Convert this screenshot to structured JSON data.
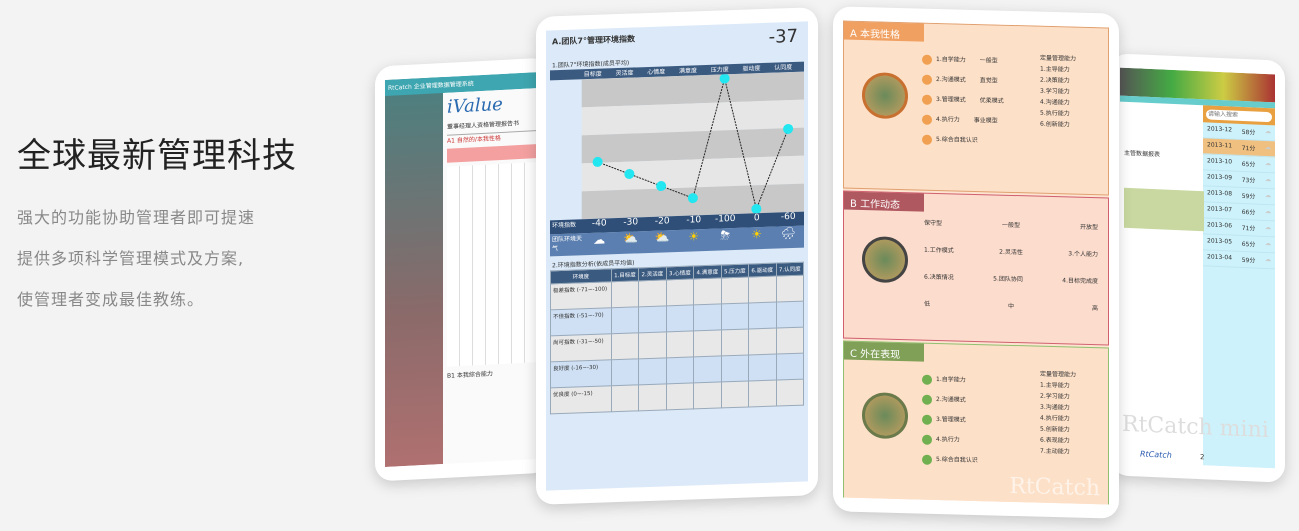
{
  "hero": {
    "title": "全球最新管理科技",
    "lines": [
      "强大的功能协助管理者即可提速",
      "提供多项科学管理模式及方案,",
      "使管理者变成最佳教练。"
    ]
  },
  "tablet_left": {
    "brand": "RtCatch",
    "header": "RtCatch 企业管理数据管理系统",
    "logo": "iValue",
    "subtitle": "董事经理人资格管理报告书",
    "section_a1": "A1 自然的/本我性格",
    "section_b1": "B1 本我综合能力"
  },
  "tablet_mid": {
    "title": "A.团队7°管理环境指数",
    "score": "-37",
    "chart_caption": "1.团队7°环境指数(成员平均)",
    "row_index_label": "环境指数",
    "row_weather_label": "团队环境天气",
    "weather_icons": [
      "cloudy-icon",
      "partly-sunny-icon",
      "partly-sunny-icon",
      "sunny-icon",
      "thunderstorm-icon",
      "sunny-icon",
      "rain-icon"
    ],
    "table_caption": "2.环境指数分析(依成员平均值)",
    "table_headers": [
      "环境度",
      "1.目标度",
      "2.灵活度",
      "3.心情度",
      "4.满意度",
      "5.压力度",
      "6.驱动度",
      "7.认同度"
    ],
    "table_rows": [
      {
        "label": "极差指数 (-71~-100)"
      },
      {
        "label": "不佳指数 (-51~-70)"
      },
      {
        "label": "尚可指数 (-31~-50)"
      },
      {
        "label": "良好度 (-16~-30)"
      },
      {
        "label": "优良度 (0~-15)"
      }
    ]
  },
  "chart_data": {
    "type": "line",
    "categories": [
      "目标度",
      "灵活度",
      "心情度",
      "满意度",
      "压力度",
      "驱动度",
      "认同度"
    ],
    "values": [
      -40,
      -30,
      -20,
      -10,
      -100,
      0,
      -60
    ],
    "ylim": [
      0,
      -100
    ],
    "y_inverted": true,
    "marker_color": "#22e6f0"
  },
  "tablet_right1": {
    "sections": [
      {
        "letter": "A",
        "title": "本我性格",
        "color": "#f0a060",
        "items": [
          "1.自学能力",
          "2.沟通模式",
          "3.管理模式",
          "4.执行力",
          "5.综合自我认识"
        ],
        "side": [
          "一般型",
          "直觉型",
          "优柔模式",
          "事业模型"
        ],
        "list_title": "定量管理能力",
        "list": [
          "1.主导能力",
          "2.决策能力",
          "3.学习能力",
          "4.沟通能力",
          "5.执行能力",
          "6.创新能力"
        ]
      },
      {
        "letter": "B",
        "title": "工作动态",
        "color": "#d06070",
        "top": [
          "保守型",
          "一般型",
          "开放型"
        ],
        "mid": [
          "1.工作模式",
          "2.灵活性",
          "3.个人能力"
        ],
        "bot": [
          "6.决策情况",
          "5.团队协同",
          "4.目标完成度"
        ],
        "scale": [
          "低",
          "中",
          "高"
        ]
      },
      {
        "letter": "C",
        "title": "外在表现",
        "color": "#70a050",
        "items": [
          "1.自学能力",
          "2.沟通模式",
          "3.管理模式",
          "4.执行力",
          "5.综合自我认识"
        ],
        "list_title": "定量管理能力",
        "list": [
          "1.主导能力",
          "2.学习能力",
          "3.沟通能力",
          "4.执行能力",
          "5.创新能力",
          "6.表现能力",
          "7.主动能力"
        ]
      }
    ],
    "watermark": "RtCatch"
  },
  "tablet_right2": {
    "search_placeholder": "请输入搜索",
    "user": "主管数据报表",
    "dates": [
      "2013-12",
      "2013-11",
      "2013-10",
      "2013-09",
      "2013-08",
      "2013-07",
      "2013-06",
      "2013-05",
      "2013-04"
    ],
    "scores": [
      "58分",
      "71分",
      "65分",
      "73分",
      "59分",
      "66分",
      "71分",
      "65分",
      "59分"
    ],
    "page": "2",
    "brand": "RtCatch",
    "watermark": "RtCatch mini"
  }
}
